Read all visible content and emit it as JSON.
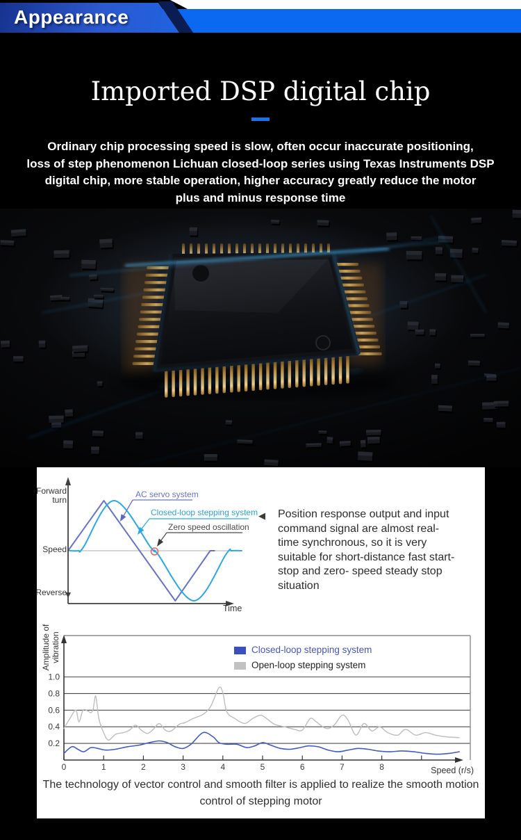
{
  "header": {
    "title": "Appearance"
  },
  "hero": {
    "title": "Imported DSP digital chip",
    "underline_color": "#1a73e8",
    "paragraph": "Ordinary chip processing speed is slow, often occur inaccurate positioning,\nloss of step phenomenon Lichuan closed-loop series using Texas Instruments DSP\ndigital chip, more stable operation, higher accuracy greatly reduce the motor\nplus and minus response time"
  },
  "note": {
    "icon": "◀",
    "text": "Position response output and input\ncommand signal are almost real-time\nsynchronous, so it is very suitable for\nshort-distance fast start-stop and zero-\nspeed steady stop situation"
  },
  "caption": "The technology of vector control and smooth filter is applied to realize the smooth motion\ncontrol of stepping motor",
  "colors": {
    "header_bar": "#0a69f0",
    "accent_underline": "#1a73e8",
    "servo_purple": "#6673c8",
    "stepping_cyan": "#29a9e4",
    "closed_blue": "#3f5cc4",
    "open_gray": "#bdbdbd",
    "zero_marker_red": "#e06666"
  },
  "chart_data": [
    {
      "type": "line",
      "title": "Speed response comparison (schematic)",
      "xlabel": "Time",
      "axis_labels": {
        "top": "Forward\nturn",
        "mid": "Speed",
        "bottom": "Reverse"
      },
      "xrange": [
        0,
        10.2
      ],
      "yrange": [
        -1.15,
        1.35
      ],
      "grid": false,
      "annotations": [
        {
          "label": "AC servo system",
          "color": "#6673c8"
        },
        {
          "label": "Closed-loop stepping system",
          "color": "#29a9e4"
        },
        {
          "label": "Zero speed oscillation",
          "color": "#4a4a4a"
        }
      ],
      "zero_marker": {
        "x": 5.08,
        "y": 0,
        "color": "#e06666"
      },
      "series": [
        {
          "name": "AC servo system",
          "color": "#6673c8",
          "smooth": false,
          "points": [
            [
              0,
              0
            ],
            [
              2.1,
              1
            ],
            [
              6.3,
              -1
            ],
            [
              8.35,
              0
            ],
            [
              8.6,
              0
            ]
          ]
        },
        {
          "name": "Closed-loop stepping system",
          "color": "#29a9e4",
          "smooth": true,
          "points": [
            [
              0.1,
              0
            ],
            [
              0.6,
              0
            ],
            [
              0.9,
              0.07
            ],
            [
              2.7,
              1
            ],
            [
              4.85,
              0.07
            ],
            [
              5.08,
              0
            ],
            [
              5.3,
              -0.08
            ],
            [
              7.4,
              -1
            ],
            [
              9.3,
              -0.06
            ],
            [
              9.6,
              0
            ],
            [
              10.2,
              0
            ]
          ]
        }
      ]
    },
    {
      "type": "line",
      "title": "Vibration amplitude vs speed",
      "ylabel": "Amplitude\nof vibration",
      "xlabel": "Speed (r/s)",
      "yticks": [
        1.0,
        0.8,
        0.6,
        0.4,
        0.2
      ],
      "xticks": [
        0,
        1,
        2,
        3,
        4,
        5,
        6,
        7,
        8
      ],
      "xrange": [
        0,
        10.2
      ],
      "yrange": [
        0,
        1.5
      ],
      "grid": true,
      "legend_position": "top-center-inside",
      "legend": [
        {
          "label": "Closed-loop stepping system",
          "color": "#3a50bc",
          "text_color": "#4456bf"
        },
        {
          "label": "Open-loop stepping system",
          "color": "#c2c2c2",
          "text_color": "#222222"
        }
      ],
      "series": [
        {
          "name": "Open-loop stepping system",
          "color": "#bdbdbd",
          "width": 1.4,
          "smooth": true,
          "points": [
            [
              0,
              0.38
            ],
            [
              0.15,
              0.5
            ],
            [
              0.3,
              0.6
            ],
            [
              0.38,
              0.46
            ],
            [
              0.48,
              0.6
            ],
            [
              0.6,
              0.59
            ],
            [
              0.68,
              0.57
            ],
            [
              0.74,
              0.62
            ],
            [
              0.8,
              0.77
            ],
            [
              0.88,
              0.5
            ],
            [
              1.0,
              0.33
            ],
            [
              1.12,
              0.24
            ],
            [
              1.3,
              0.31
            ],
            [
              1.5,
              0.33
            ],
            [
              1.65,
              0.36
            ],
            [
              1.8,
              0.42
            ],
            [
              1.95,
              0.36
            ],
            [
              2.1,
              0.32
            ],
            [
              2.25,
              0.37
            ],
            [
              2.4,
              0.44
            ],
            [
              2.55,
              0.36
            ],
            [
              2.7,
              0.35
            ],
            [
              2.9,
              0.43
            ],
            [
              3.05,
              0.45
            ],
            [
              3.25,
              0.5
            ],
            [
              3.5,
              0.55
            ],
            [
              3.7,
              0.65
            ],
            [
              3.9,
              0.87
            ],
            [
              4.0,
              0.81
            ],
            [
              4.1,
              0.58
            ],
            [
              4.3,
              0.5
            ],
            [
              4.55,
              0.44
            ],
            [
              4.75,
              0.5
            ],
            [
              4.95,
              0.54
            ],
            [
              5.1,
              0.5
            ],
            [
              5.3,
              0.43
            ],
            [
              5.55,
              0.4
            ],
            [
              5.8,
              0.37
            ],
            [
              6.0,
              0.36
            ],
            [
              6.2,
              0.5
            ],
            [
              6.35,
              0.46
            ],
            [
              6.6,
              0.38
            ],
            [
              6.8,
              0.42
            ],
            [
              7.0,
              0.54
            ],
            [
              7.15,
              0.48
            ],
            [
              7.35,
              0.3
            ],
            [
              7.55,
              0.44
            ],
            [
              7.75,
              0.35
            ],
            [
              7.95,
              0.4
            ],
            [
              8.15,
              0.33
            ],
            [
              8.4,
              0.3
            ],
            [
              8.6,
              0.37
            ],
            [
              8.85,
              0.3
            ],
            [
              9.1,
              0.33
            ],
            [
              9.35,
              0.3
            ],
            [
              9.6,
              0.28
            ],
            [
              9.95,
              0.27
            ]
          ]
        },
        {
          "name": "Closed-loop stepping system",
          "color": "#3f5cc4",
          "width": 1.6,
          "smooth": true,
          "points": [
            [
              0,
              0.08
            ],
            [
              0.2,
              0.16
            ],
            [
              0.35,
              0.13
            ],
            [
              0.5,
              0.1
            ],
            [
              0.68,
              0.15
            ],
            [
              0.85,
              0.14
            ],
            [
              1.05,
              0.12
            ],
            [
              1.3,
              0.13
            ],
            [
              1.6,
              0.16
            ],
            [
              1.9,
              0.18
            ],
            [
              2.15,
              0.21
            ],
            [
              2.4,
              0.23
            ],
            [
              2.6,
              0.21
            ],
            [
              2.8,
              0.16
            ],
            [
              3.0,
              0.14
            ],
            [
              3.2,
              0.19
            ],
            [
              3.5,
              0.33
            ],
            [
              3.75,
              0.28
            ],
            [
              3.9,
              0.21
            ],
            [
              4.1,
              0.19
            ],
            [
              4.35,
              0.19
            ],
            [
              4.6,
              0.15
            ],
            [
              4.8,
              0.17
            ],
            [
              5.0,
              0.21
            ],
            [
              5.2,
              0.18
            ],
            [
              5.45,
              0.14
            ],
            [
              5.7,
              0.13
            ],
            [
              5.95,
              0.15
            ],
            [
              6.15,
              0.17
            ],
            [
              6.4,
              0.16
            ],
            [
              6.65,
              0.12
            ],
            [
              6.9,
              0.1
            ],
            [
              7.15,
              0.12
            ],
            [
              7.4,
              0.14
            ],
            [
              7.65,
              0.13
            ],
            [
              7.9,
              0.11
            ],
            [
              8.2,
              0.1
            ],
            [
              8.5,
              0.11
            ],
            [
              8.8,
              0.1
            ],
            [
              9.1,
              0.08
            ],
            [
              9.4,
              0.07
            ],
            [
              9.7,
              0.08
            ],
            [
              9.95,
              0.1
            ]
          ]
        }
      ]
    }
  ]
}
